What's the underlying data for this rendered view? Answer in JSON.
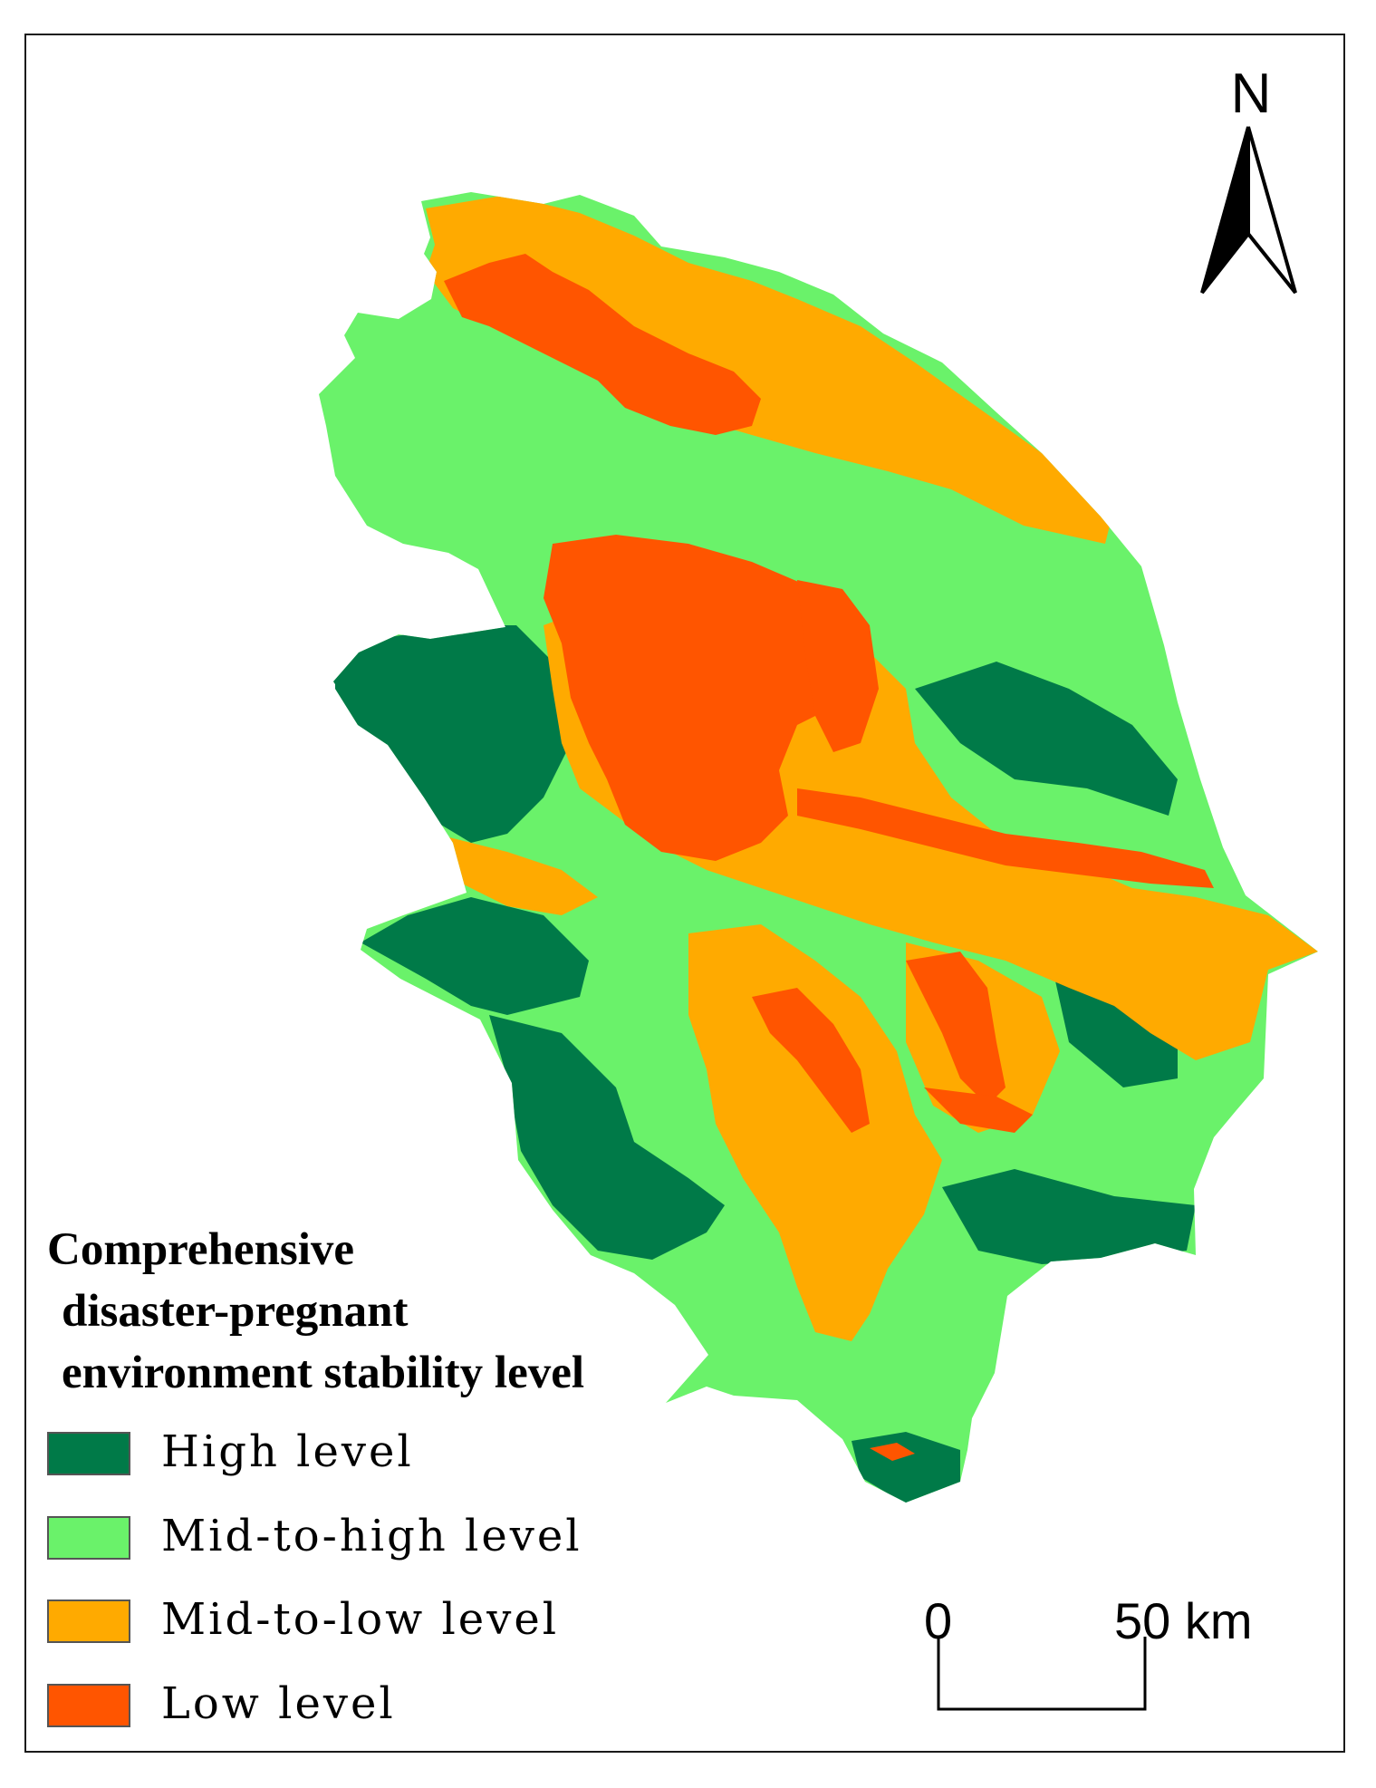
{
  "map": {
    "north_label": "N",
    "scale": {
      "start_label": "0",
      "end_label": "50 km"
    },
    "legend": {
      "title_lines": [
        "Comprehensive",
        "disaster-pregnant",
        "environment  stability level"
      ],
      "items": [
        {
          "label": "High level",
          "color": "#007a48"
        },
        {
          "label": "Mid-to-high level",
          "color": "#6af26a"
        },
        {
          "label": "Mid-to-low level",
          "color": "#ffaa00"
        },
        {
          "label": "Low level",
          "color": "#ff5500"
        }
      ]
    }
  }
}
